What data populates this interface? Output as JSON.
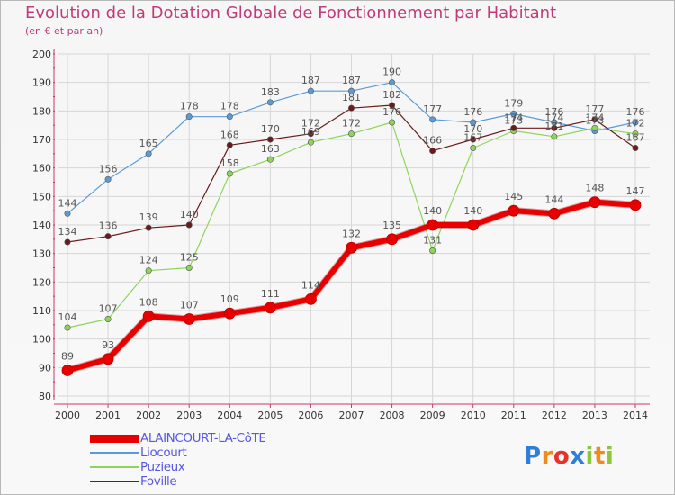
{
  "header": {
    "title": "Evolution de la Dotation Globale de Fonctionnement par Habitant",
    "subtitle": "(en € et par an)"
  },
  "colors": {
    "title": "#c03b7a",
    "axis": "#cc3a62",
    "grid": "#d6d6d6",
    "legend_text": "#5757e2"
  },
  "logo": {
    "text": "Proxiti"
  },
  "chart_data": {
    "type": "line",
    "x": [
      2000,
      2001,
      2002,
      2003,
      2004,
      2005,
      2006,
      2007,
      2008,
      2009,
      2010,
      2011,
      2012,
      2013,
      2014
    ],
    "ylim": [
      80,
      200
    ],
    "yticks": [
      80,
      90,
      100,
      110,
      120,
      130,
      140,
      150,
      160,
      170,
      180,
      190,
      200
    ],
    "grid": true,
    "legend_position": "bottom",
    "series": [
      {
        "name": "ALAINCOURT-LA-CôTE",
        "color": "#e80000",
        "values": [
          89,
          93,
          108,
          107,
          109,
          111,
          114,
          132,
          135,
          140,
          140,
          145,
          144,
          148,
          147
        ]
      },
      {
        "name": "Liocourt",
        "color": "#5b9bd5",
        "values": [
          144,
          156,
          165,
          178,
          178,
          183,
          187,
          187,
          190,
          177,
          176,
          179,
          176,
          173,
          176
        ]
      },
      {
        "name": "Puzieux",
        "color": "#8ed45a",
        "values": [
          104,
          107,
          124,
          125,
          158,
          163,
          169,
          172,
          176,
          131,
          167,
          173,
          171,
          174,
          172
        ]
      },
      {
        "name": "Foville",
        "color": "#6a1c1c",
        "values": [
          134,
          136,
          139,
          140,
          168,
          170,
          172,
          181,
          182,
          166,
          170,
          174,
          174,
          177,
          167
        ]
      }
    ]
  }
}
